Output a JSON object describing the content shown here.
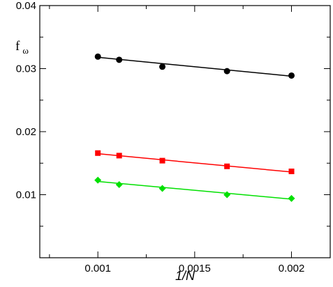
{
  "chart_data": {
    "type": "scatter",
    "xlabel": "1/N",
    "ylabel": {
      "main": "f",
      "sub": "ω"
    },
    "xlim": [
      0.0007,
      0.0022
    ],
    "ylim": [
      0.0,
      0.04
    ],
    "x_ticks": [
      0.001,
      0.0015,
      0.002
    ],
    "x_tick_labels": [
      "0.001",
      "0.0015",
      "0.002"
    ],
    "x_minor_ticks": [
      0.00075,
      0.00125,
      0.00175,
      0.00225
    ],
    "y_ticks": [
      0.01,
      0.02,
      0.03,
      0.04
    ],
    "y_tick_labels": [
      "0.01",
      "0.02",
      "0.03",
      "0.04"
    ],
    "y_minor_ticks": [
      0.005,
      0.015,
      0.025,
      0.035
    ],
    "grid": false,
    "legend": "none",
    "series": [
      {
        "marker": "circle",
        "color": "#000000",
        "x": [
          0.001,
          0.00111,
          0.001333,
          0.001667,
          0.002
        ],
        "y": [
          0.0319,
          0.0314,
          0.0303,
          0.0296,
          0.0289
        ],
        "fit": {
          "x": [
            0.001,
            0.002
          ],
          "y": [
            0.0318,
            0.0288
          ]
        }
      },
      {
        "marker": "square",
        "color": "#ff0000",
        "x": [
          0.001,
          0.00111,
          0.001333,
          0.001667,
          0.002
        ],
        "y": [
          0.0166,
          0.0162,
          0.0154,
          0.0145,
          0.0137
        ],
        "fit": {
          "x": [
            0.001,
            0.002
          ],
          "y": [
            0.0165,
            0.0136
          ]
        }
      },
      {
        "marker": "diamond",
        "color": "#00e000",
        "x": [
          0.001,
          0.00111,
          0.001333,
          0.001667,
          0.002
        ],
        "y": [
          0.0123,
          0.0116,
          0.011,
          0.01,
          0.0094
        ],
        "fit": {
          "x": [
            0.001,
            0.002
          ],
          "y": [
            0.0121,
            0.0093
          ]
        }
      }
    ]
  }
}
